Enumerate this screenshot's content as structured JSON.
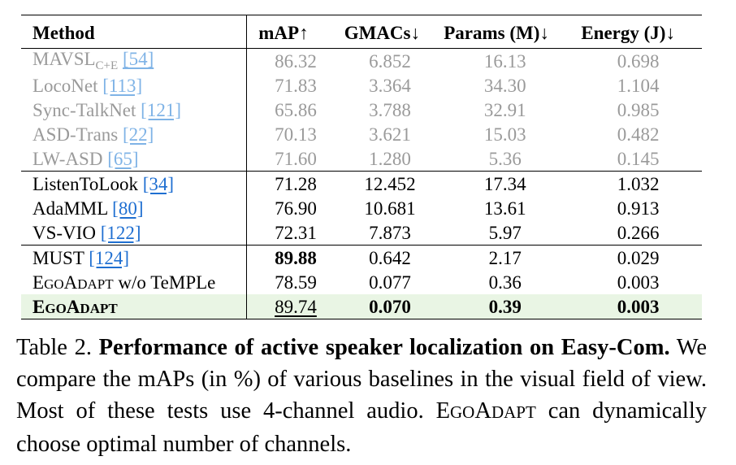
{
  "table": {
    "headers": {
      "method": "Method",
      "map": "mAP↑",
      "gmacs": "GMACs↓",
      "params": "Params (M)↓",
      "energy": "Energy (J)↓"
    },
    "faded_rows": [
      {
        "name": "MAVSL",
        "name_sub": "C+E",
        "ref": "[54]",
        "map": "86.32",
        "gmacs": "6.852",
        "params": "16.13",
        "energy": "0.698"
      },
      {
        "name": "LocoNet",
        "ref": "[113]",
        "map": "71.83",
        "gmacs": "3.364",
        "params": "34.30",
        "energy": "1.104"
      },
      {
        "name": "Sync-TalkNet",
        "ref": "[121]",
        "map": "65.86",
        "gmacs": "3.788",
        "params": "32.91",
        "energy": "0.985"
      },
      {
        "name": "ASD-Trans",
        "ref": "[22]",
        "map": "70.13",
        "gmacs": "3.621",
        "params": "15.03",
        "energy": "0.482"
      },
      {
        "name": "LW-ASD",
        "ref": "[65]",
        "map": "71.60",
        "gmacs": "1.280",
        "params": "5.36",
        "energy": "0.145"
      }
    ],
    "group2_rows": [
      {
        "name": "ListenToLook",
        "ref": "[34]",
        "map": "71.28",
        "gmacs": "12.452",
        "params": "17.34",
        "energy": "1.032"
      },
      {
        "name": "AdaMML",
        "ref": "[80]",
        "map": "76.90",
        "gmacs": "10.681",
        "params": "13.61",
        "energy": "0.913"
      },
      {
        "name": "VS-VIO",
        "ref": "[122]",
        "map": "72.31",
        "gmacs": "7.873",
        "params": "5.97",
        "energy": "0.266"
      }
    ],
    "must_row": {
      "name": "MUST",
      "ref": "[124]",
      "map": "89.88",
      "gmacs": "0.642",
      "params": "2.17",
      "energy": "0.029"
    },
    "ablation_row": {
      "name_e": "E",
      "name_go": "GO",
      "name_a": "A",
      "name_dapt": "DAPT",
      "name_rest": " w/o TeMPLe",
      "map": "78.59",
      "gmacs": "0.077",
      "params": "0.36",
      "energy": "0.003"
    },
    "ours_row": {
      "name_e": "E",
      "name_go": "GO",
      "name_a": "A",
      "name_dapt": "DAPT",
      "map": "89.74",
      "gmacs": "0.070",
      "params": "0.39",
      "energy": "0.003"
    },
    "highlight_color": "#e9f5e4",
    "ref_link_color": "#1f6fd1"
  },
  "caption": {
    "label": "Table 2.",
    "bold_text": "Performance of active speaker localization on Easy-Com.",
    "text": " We compare the mAPs (in %) of various baselines in the visual field of view.  Most of these tests use 4-channel audio.",
    "ego_e": "E",
    "ego_go": "GO",
    "ego_a": "A",
    "ego_dapt": "DAPT",
    "tail": " can dynamically choose optimal number of channels."
  }
}
